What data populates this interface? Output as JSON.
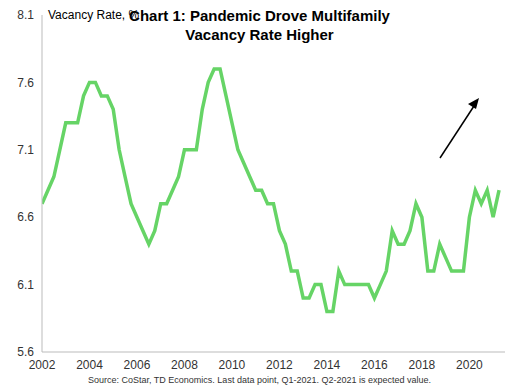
{
  "chart_data": {
    "type": "line",
    "title": "Chart 1: Pandemic Drove Multifamily Vacancy Rate Higher",
    "y_label": "Vacancy Rate, %",
    "source": "Source: CoStar, TD Economics.  Last data point, Q1-2021. Q2-2021 is expected value.",
    "x": [
      2002,
      2002.25,
      2002.5,
      2002.75,
      2003,
      2003.25,
      2003.5,
      2003.75,
      2004,
      2004.25,
      2004.5,
      2004.75,
      2005,
      2005.25,
      2005.5,
      2005.75,
      2006,
      2006.25,
      2006.5,
      2006.75,
      2007,
      2007.25,
      2007.5,
      2007.75,
      2008,
      2008.25,
      2008.5,
      2008.75,
      2009,
      2009.25,
      2009.5,
      2009.75,
      2010,
      2010.25,
      2010.5,
      2010.75,
      2011,
      2011.25,
      2011.5,
      2011.75,
      2012,
      2012.25,
      2012.5,
      2012.75,
      2013,
      2013.25,
      2013.5,
      2013.75,
      2014,
      2014.25,
      2014.5,
      2014.75,
      2015,
      2015.25,
      2015.5,
      2015.75,
      2016,
      2016.25,
      2016.5,
      2016.75,
      2017,
      2017.25,
      2017.5,
      2017.75,
      2018,
      2018.25,
      2018.5,
      2018.75,
      2019,
      2019.25,
      2019.5,
      2019.75,
      2020,
      2020.25,
      2020.5,
      2020.75,
      2021,
      2021.25
    ],
    "values": [
      6.7,
      6.8,
      6.9,
      7.1,
      7.3,
      7.3,
      7.3,
      7.5,
      7.6,
      7.6,
      7.5,
      7.5,
      7.4,
      7.1,
      6.9,
      6.7,
      6.6,
      6.5,
      6.4,
      6.5,
      6.7,
      6.7,
      6.8,
      6.9,
      7.1,
      7.1,
      7.1,
      7.4,
      7.6,
      7.7,
      7.7,
      7.5,
      7.3,
      7.1,
      7.0,
      6.9,
      6.8,
      6.8,
      6.7,
      6.7,
      6.5,
      6.4,
      6.2,
      6.2,
      6.0,
      6.0,
      6.1,
      6.1,
      5.9,
      5.9,
      6.2,
      6.1,
      6.1,
      6.1,
      6.1,
      6.1,
      6.0,
      6.1,
      6.2,
      6.5,
      6.4,
      6.4,
      6.5,
      6.7,
      6.6,
      6.2,
      6.2,
      6.4,
      6.3,
      6.2,
      6.2,
      6.2,
      6.6,
      6.8,
      6.7,
      6.8,
      6.6,
      6.8
    ],
    "color": "#66d466",
    "xlim": [
      2002,
      2021.5
    ],
    "xticks": [
      2002,
      2004,
      2006,
      2008,
      2010,
      2012,
      2014,
      2016,
      2018,
      2020
    ],
    "ylim": [
      5.6,
      8.1
    ],
    "yticks": [
      5.6,
      6.1,
      6.6,
      7.1,
      7.6,
      8.1
    ],
    "grid": false
  }
}
